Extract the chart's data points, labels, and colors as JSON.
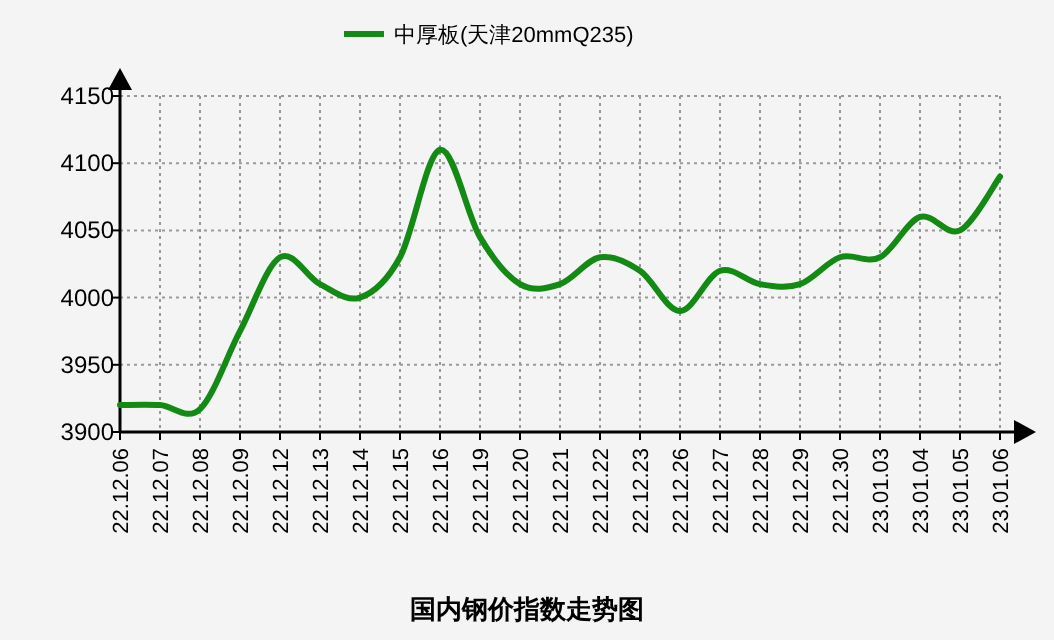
{
  "chart_data": {
    "type": "line",
    "title": "国内钢价指数走势图",
    "categories": [
      "22.12.06",
      "22.12.07",
      "22.12.08",
      "22.12.09",
      "22.12.12",
      "22.12.13",
      "22.12.14",
      "22.12.15",
      "22.12.16",
      "22.12.19",
      "22.12.20",
      "22.12.21",
      "22.12.22",
      "22.12.23",
      "22.12.26",
      "22.12.27",
      "22.12.28",
      "22.12.29",
      "22.12.30",
      "23.01.03",
      "23.01.04",
      "23.01.05",
      "23.01.06"
    ],
    "series": [
      {
        "name": "中厚板(天津20mmQ235)",
        "color": "#138a13",
        "values": [
          3920,
          3920,
          3917,
          3975,
          4030,
          4010,
          4000,
          4030,
          4110,
          4045,
          4010,
          4010,
          4030,
          4020,
          3990,
          4020,
          4010,
          4010,
          4030,
          4030,
          4060,
          4050,
          4090
        ]
      }
    ],
    "ylim": [
      3900,
      4150
    ],
    "yticks": [
      3900,
      3950,
      4000,
      4050,
      4100,
      4150
    ],
    "grid": true,
    "legend": "top",
    "marker": "none",
    "line_style": "solid"
  }
}
